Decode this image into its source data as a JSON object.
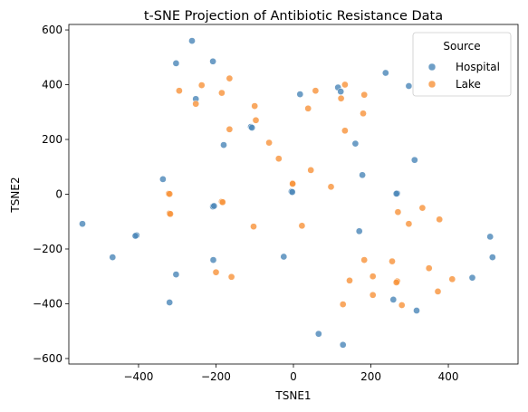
{
  "chart_data": {
    "type": "scatter",
    "title": "t-SNE Projection of Antibiotic Resistance Data",
    "xlabel": "TSNE1",
    "ylabel": "TSNE2",
    "xlim": [
      -580,
      580
    ],
    "ylim": [
      -620,
      620
    ],
    "xticks": [
      -400,
      -200,
      0,
      200,
      400
    ],
    "yticks": [
      -600,
      -400,
      -200,
      0,
      200,
      400,
      600
    ],
    "grid": false,
    "legend": {
      "title": "Source",
      "placement": "top-right"
    },
    "colors": {
      "Hospital": "#4a86b8",
      "Lake": "#f7923a"
    },
    "series": [
      {
        "name": "Hospital",
        "points": [
          [
            -262,
            560
          ],
          [
            -208,
            485
          ],
          [
            -303,
            478
          ],
          [
            -252,
            348
          ],
          [
            -110,
            246
          ],
          [
            -107,
            243
          ],
          [
            -180,
            180
          ],
          [
            -337,
            55
          ],
          [
            -208,
            -45
          ],
          [
            -205,
            -43
          ],
          [
            -405,
            -150
          ],
          [
            -408,
            -152
          ],
          [
            -545,
            -108
          ],
          [
            -467,
            -230
          ],
          [
            -207,
            -240
          ],
          [
            -303,
            -293
          ],
          [
            -320,
            -395
          ],
          [
            -25,
            -228
          ],
          [
            -5,
            10
          ],
          [
            -3,
            8
          ],
          [
            17,
            365
          ],
          [
            115,
            390
          ],
          [
            122,
            375
          ],
          [
            238,
            443
          ],
          [
            298,
            395
          ],
          [
            160,
            185
          ],
          [
            313,
            125
          ],
          [
            178,
            70
          ],
          [
            268,
            3
          ],
          [
            266,
            2
          ],
          [
            170,
            -135
          ],
          [
            258,
            -385
          ],
          [
            318,
            -425
          ],
          [
            65,
            -510
          ],
          [
            128,
            -550
          ],
          [
            462,
            -305
          ],
          [
            508,
            -155
          ],
          [
            514,
            -230
          ]
        ]
      },
      {
        "name": "Lake",
        "points": [
          [
            -295,
            378
          ],
          [
            -237,
            398
          ],
          [
            -252,
            330
          ],
          [
            -165,
            423
          ],
          [
            -185,
            370
          ],
          [
            -100,
            322
          ],
          [
            -97,
            270
          ],
          [
            -165,
            237
          ],
          [
            -63,
            188
          ],
          [
            -38,
            130
          ],
          [
            57,
            378
          ],
          [
            133,
            400
          ],
          [
            38,
            313
          ],
          [
            123,
            350
          ],
          [
            183,
            363
          ],
          [
            180,
            295
          ],
          [
            133,
            232
          ],
          [
            45,
            88
          ],
          [
            -2,
            40
          ],
          [
            -2,
            38
          ],
          [
            97,
            27
          ],
          [
            -322,
            2
          ],
          [
            -320,
            1
          ],
          [
            -320,
            -70
          ],
          [
            -318,
            -72
          ],
          [
            -185,
            -27
          ],
          [
            -183,
            -29
          ],
          [
            -103,
            -118
          ],
          [
            22,
            -115
          ],
          [
            333,
            -50
          ],
          [
            377,
            -92
          ],
          [
            270,
            -65
          ],
          [
            298,
            -108
          ],
          [
            183,
            -240
          ],
          [
            255,
            -245
          ],
          [
            350,
            -270
          ],
          [
            205,
            -300
          ],
          [
            145,
            -315
          ],
          [
            268,
            -318
          ],
          [
            266,
            -322
          ],
          [
            410,
            -310
          ],
          [
            373,
            -355
          ],
          [
            205,
            -368
          ],
          [
            128,
            -402
          ],
          [
            280,
            -405
          ],
          [
            -200,
            -285
          ],
          [
            -160,
            -302
          ]
        ]
      }
    ]
  }
}
